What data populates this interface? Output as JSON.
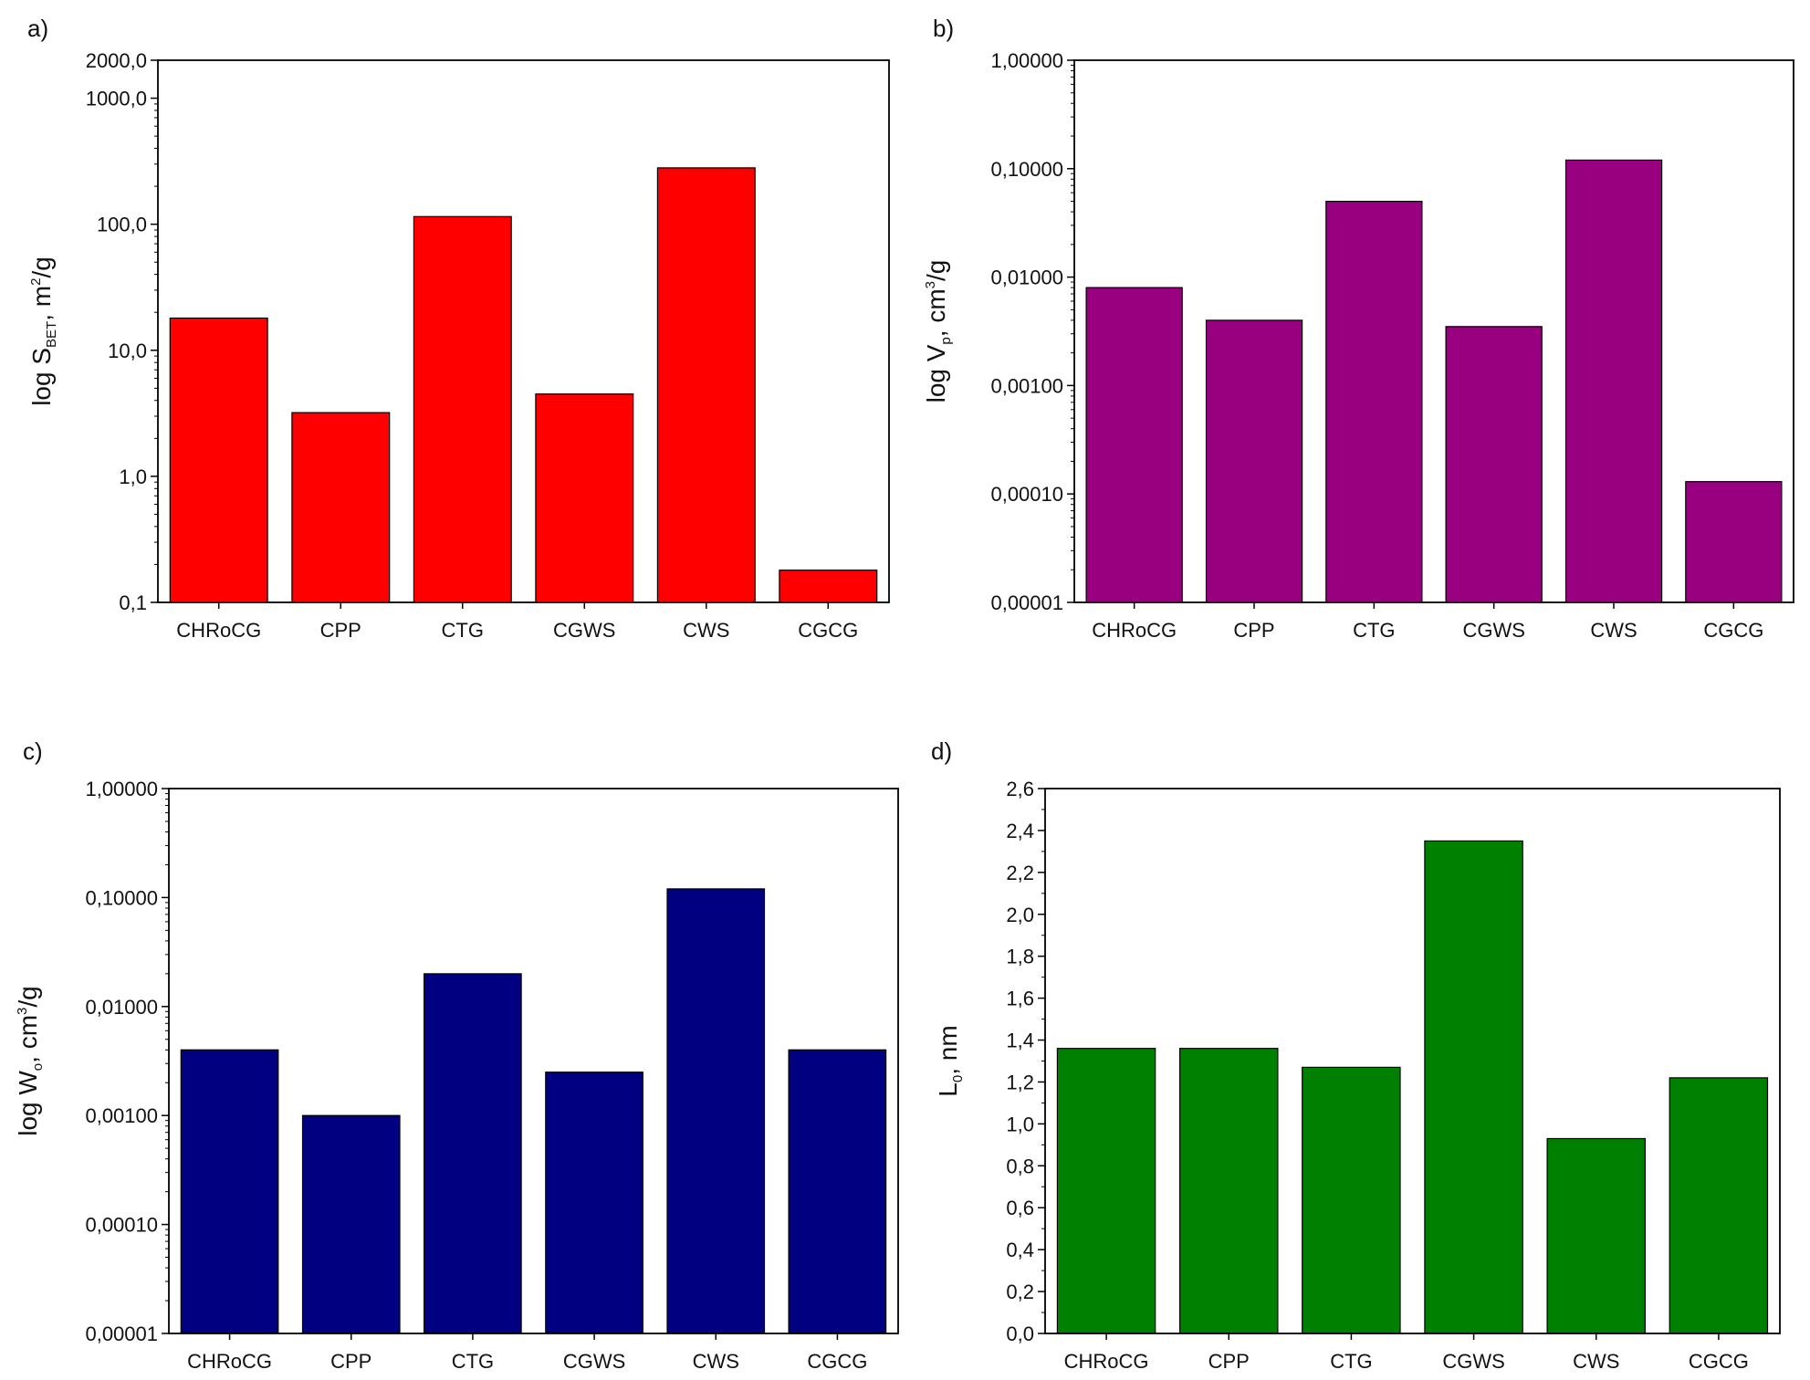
{
  "chart_data": [
    {
      "panel_label": "a)",
      "type": "bar",
      "scale": "log",
      "bar_color": "#ff0000",
      "ylabel": {
        "prefix": "log S",
        "sub": "BET",
        "mid": ", m",
        "sup": "2",
        "suffix": "/g"
      },
      "ylim": [
        0.1,
        2000
      ],
      "yticks": [
        0.1,
        1,
        10,
        100,
        1000,
        2000
      ],
      "ytick_labels": [
        "0,1",
        "1,0",
        "10,0",
        "100,0",
        "1000,0",
        "2000,0"
      ],
      "categories": [
        "CHRoCG",
        "CPP",
        "CTG",
        "CGWS",
        "CWS",
        "CGCG"
      ],
      "values": [
        18,
        3.2,
        115,
        4.5,
        280,
        0.18
      ],
      "grid": false
    },
    {
      "panel_label": "b)",
      "type": "bar",
      "scale": "log",
      "bar_color": "#990080",
      "ylabel": {
        "prefix": "log V",
        "sub": "p",
        "mid": ", cm",
        "sup": "3",
        "suffix": "/g"
      },
      "ylim": [
        1e-05,
        1
      ],
      "yticks": [
        1e-05,
        0.0001,
        0.001,
        0.01,
        0.1,
        1
      ],
      "ytick_labels": [
        "0,00001",
        "0,00010",
        "0,00100",
        "0,01000",
        "0,10000",
        "1,00000"
      ],
      "categories": [
        "CHRoCG",
        "CPP",
        "CTG",
        "CGWS",
        "CWS",
        "CGCG"
      ],
      "values": [
        0.008,
        0.004,
        0.05,
        0.0035,
        0.12,
        0.00013
      ],
      "grid": false
    },
    {
      "panel_label": "c)",
      "type": "bar",
      "scale": "log",
      "bar_color": "#000080",
      "ylabel": {
        "prefix": "log W",
        "sub": "o",
        "mid": ", cm",
        "sup": "3",
        "suffix": "/g"
      },
      "ylim": [
        1e-05,
        1
      ],
      "yticks": [
        1e-05,
        0.0001,
        0.001,
        0.01,
        0.1,
        1
      ],
      "ytick_labels": [
        "0,00001",
        "0,00010",
        "0,00100",
        "0,01000",
        "0,10000",
        "1,00000"
      ],
      "categories": [
        "CHRoCG",
        "CPP",
        "CTG",
        "CGWS",
        "CWS",
        "CGCG"
      ],
      "values": [
        0.004,
        0.001,
        0.02,
        0.0025,
        0.12,
        0.004
      ],
      "grid": false
    },
    {
      "panel_label": "d)",
      "type": "bar",
      "scale": "linear",
      "bar_color": "#008000",
      "ylabel": {
        "prefix": "L",
        "sub": "0",
        "mid": ", nm",
        "sup": "",
        "suffix": ""
      },
      "ylim": [
        0,
        2.6
      ],
      "yticks": [
        0,
        0.2,
        0.4,
        0.6,
        0.8,
        1.0,
        1.2,
        1.4,
        1.6,
        1.8,
        2.0,
        2.2,
        2.4,
        2.6
      ],
      "ytick_labels": [
        "0,0",
        "0,2",
        "0,4",
        "0,6",
        "0,8",
        "1,0",
        "1,2",
        "1,4",
        "1,6",
        "1,8",
        "2,0",
        "2,2",
        "2,4",
        "2,6"
      ],
      "categories": [
        "CHRoCG",
        "CPP",
        "CTG",
        "CGWS",
        "CWS",
        "CGCG"
      ],
      "values": [
        1.36,
        1.36,
        1.27,
        2.35,
        0.93,
        1.22
      ],
      "grid": false
    }
  ]
}
